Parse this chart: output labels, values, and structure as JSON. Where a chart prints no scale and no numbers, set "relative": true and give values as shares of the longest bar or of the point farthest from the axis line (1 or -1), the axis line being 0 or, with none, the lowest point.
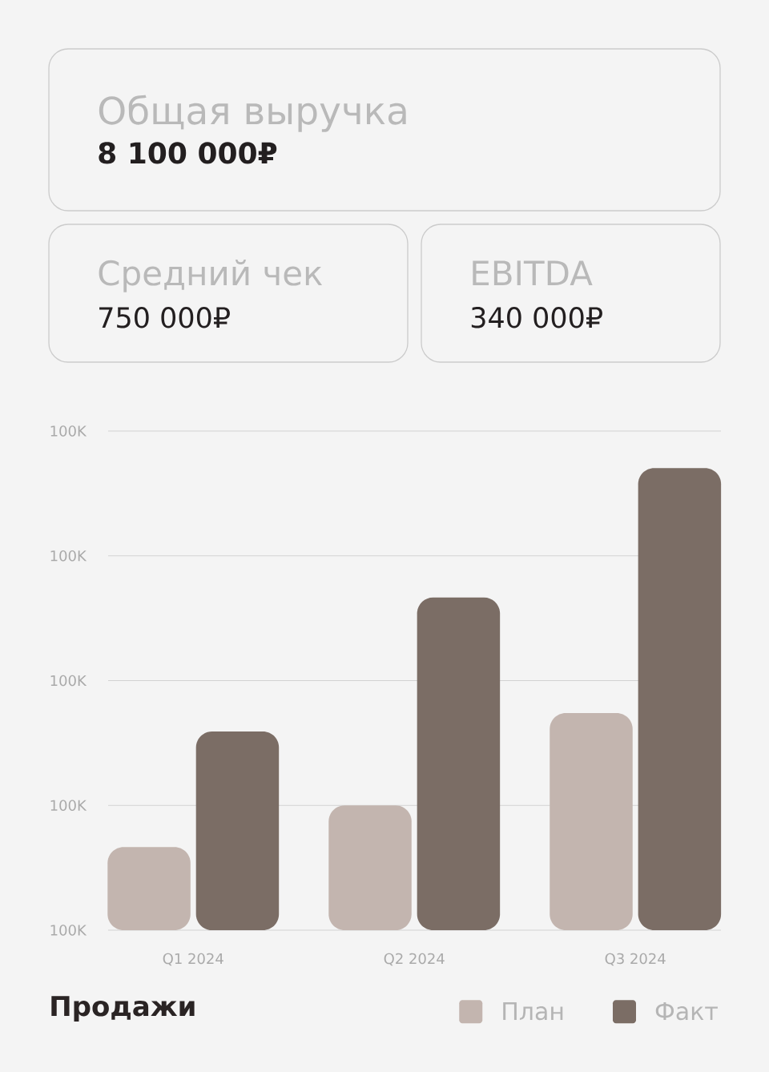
{
  "chart_data": [
    {
      "type": "other",
      "title": "Общая выручка",
      "annotations": [
        "8 100 000₽"
      ]
    },
    {
      "type": "other",
      "title": "Средний чек",
      "annotations": [
        "750 000₽"
      ]
    },
    {
      "type": "other",
      "title": "EBITDA",
      "annotations": [
        "340 000₽"
      ]
    },
    {
      "type": "bar",
      "title": "Продажи",
      "categories": [
        "Q1 2024",
        "Q2 2024",
        "Q3 2024"
      ],
      "series": [
        {
          "name": "План",
          "color": "#c3b5af",
          "values": [
            0.18,
            0.27,
            0.47
          ]
        },
        {
          "name": "Факт",
          "color": "#7b6d65",
          "values": [
            0.43,
            0.72,
            1
          ]
        }
      ],
      "relative": true,
      "annotations": [
        "100K",
        "100K",
        "100K",
        "100K",
        "100K"
      ],
      "grid": "y",
      "legend": "bottom right"
    }
  ]
}
